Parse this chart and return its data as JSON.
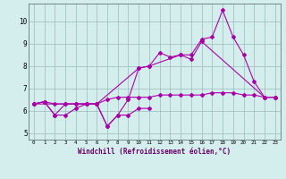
{
  "title": "",
  "xlabel": "Windchill (Refroidissement éolien,°C)",
  "ylabel": "",
  "background_color": "#d4eeee",
  "line_color": "#aa00aa",
  "grid_color": "#99bbbb",
  "spine_color": "#667777",
  "xlim": [
    -0.5,
    23.5
  ],
  "ylim": [
    4.7,
    10.8
  ],
  "xticks": [
    0,
    1,
    2,
    3,
    4,
    5,
    6,
    7,
    8,
    9,
    10,
    11,
    12,
    13,
    14,
    15,
    16,
    17,
    18,
    19,
    20,
    21,
    22,
    23
  ],
  "yticks": [
    5,
    6,
    7,
    8,
    9,
    10
  ],
  "series": [
    {
      "x": [
        0,
        1,
        2,
        3,
        4,
        5,
        6,
        7,
        8,
        9,
        10,
        11,
        12,
        13,
        14,
        15,
        16,
        17,
        18,
        19,
        20,
        21,
        22,
        23
      ],
      "y": [
        6.3,
        6.4,
        6.3,
        6.3,
        6.3,
        6.3,
        6.3,
        6.5,
        6.6,
        6.6,
        6.6,
        6.6,
        6.7,
        6.7,
        6.7,
        6.7,
        6.7,
        6.8,
        6.8,
        6.8,
        6.7,
        6.7,
        6.6,
        6.6
      ]
    },
    {
      "x": [
        0,
        1,
        2,
        3,
        4,
        5,
        6,
        7,
        8,
        9,
        10,
        11
      ],
      "y": [
        6.3,
        6.4,
        5.8,
        6.3,
        6.3,
        6.3,
        6.3,
        5.3,
        5.8,
        5.8,
        6.1,
        6.1
      ]
    },
    {
      "x": [
        0,
        1,
        2,
        3,
        4,
        5,
        6,
        7,
        8,
        9,
        10,
        11,
        12,
        13,
        14,
        15,
        16,
        17,
        18,
        19,
        20,
        21,
        22,
        23
      ],
      "y": [
        6.3,
        6.4,
        5.8,
        5.8,
        6.1,
        6.3,
        6.3,
        5.3,
        5.8,
        6.5,
        7.9,
        8.0,
        8.6,
        8.4,
        8.5,
        8.5,
        9.2,
        9.3,
        10.5,
        9.3,
        8.5,
        7.3,
        6.6,
        6.6
      ]
    },
    {
      "x": [
        0,
        6,
        10,
        11,
        14,
        15,
        16,
        22,
        23
      ],
      "y": [
        6.3,
        6.3,
        7.9,
        8.0,
        8.5,
        8.3,
        9.1,
        6.6,
        6.6
      ]
    }
  ],
  "xlabel_fontsize": 5.5,
  "xtick_fontsize": 4.2,
  "ytick_fontsize": 5.5,
  "marker_size": 2.0,
  "linewidth": 0.8
}
